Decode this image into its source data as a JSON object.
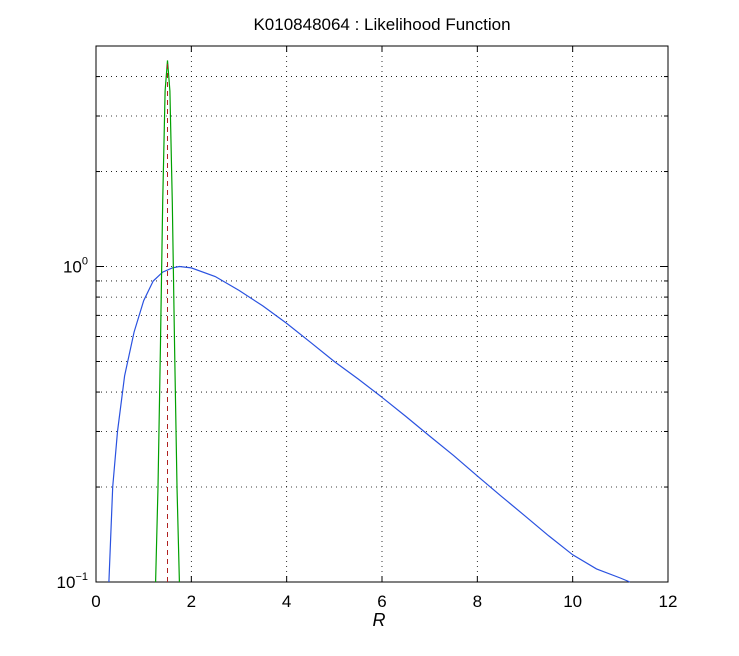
{
  "chart_data": {
    "type": "line",
    "title": "K010848064 : Likelihood Function",
    "xlabel": "R",
    "ylabel": "",
    "xlim": [
      0,
      12
    ],
    "ylim": [
      0.1,
      5.0
    ],
    "yscale": "log",
    "grid": true,
    "x_ticks": [
      "0",
      "2",
      "4",
      "6",
      "8",
      "10",
      "12"
    ],
    "y_ticks": [
      {
        "base": "10",
        "exp": "−1",
        "value": 0.1
      },
      {
        "base": "10",
        "exp": "0",
        "value": 1
      }
    ],
    "series": [
      {
        "color": "#2a52e0",
        "style": "solid",
        "x": [
          0.27,
          0.35,
          0.45,
          0.6,
          0.8,
          1.0,
          1.2,
          1.4,
          1.6,
          1.75,
          2.0,
          2.5,
          3.0,
          3.5,
          4.0,
          4.5,
          5.0,
          5.5,
          6.0,
          6.5,
          7.0,
          7.5,
          8.0,
          8.5,
          9.0,
          9.5,
          10.0,
          10.5,
          11.0,
          11.2
        ],
        "y": [
          0.1,
          0.2,
          0.3,
          0.45,
          0.62,
          0.78,
          0.9,
          0.96,
          0.99,
          1.0,
          0.99,
          0.93,
          0.84,
          0.75,
          0.66,
          0.575,
          0.5,
          0.44,
          0.385,
          0.335,
          0.29,
          0.252,
          0.217,
          0.187,
          0.162,
          0.14,
          0.122,
          0.11,
          0.103,
          0.1
        ]
      },
      {
        "color": "#00a000",
        "style": "solid",
        "x": [
          1.25,
          1.3,
          1.35,
          1.4,
          1.45,
          1.5,
          1.55,
          1.6,
          1.65,
          1.7,
          1.75
        ],
        "y": [
          0.1,
          0.2,
          0.55,
          1.6,
          3.6,
          4.5,
          3.6,
          1.6,
          0.55,
          0.2,
          0.1
        ]
      }
    ],
    "marker_line": {
      "x": 1.5,
      "color": "#b02020",
      "style": "dashed"
    }
  }
}
